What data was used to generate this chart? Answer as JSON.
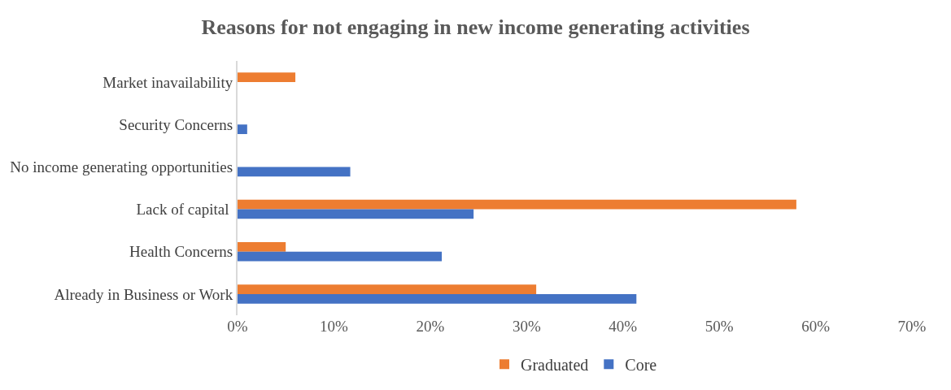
{
  "chart_data": {
    "type": "bar",
    "orientation": "horizontal",
    "title": "Reasons for not engaging in new income generating activities",
    "categories": [
      "Market inavailability",
      "Security Concerns",
      "No income generating opportunities",
      "Lack of capital ",
      "Health Concerns",
      "Already in Business or Work"
    ],
    "series": [
      {
        "name": "Graduated",
        "color": "#ed7d31",
        "values": [
          6.0,
          null,
          null,
          58.0,
          5.0,
          31.0
        ]
      },
      {
        "name": "Core",
        "color": "#4472c4",
        "values": [
          null,
          1.0,
          11.7,
          24.5,
          21.2,
          41.4
        ]
      }
    ],
    "xlim": [
      0,
      70
    ],
    "xticks": [
      {
        "value": 0,
        "label": "0%"
      },
      {
        "value": 10,
        "label": "10%"
      },
      {
        "value": 20,
        "label": "20%"
      },
      {
        "value": 30,
        "label": "30%"
      },
      {
        "value": 40,
        "label": "40%"
      },
      {
        "value": 50,
        "label": "50%"
      },
      {
        "value": 60,
        "label": "60%"
      },
      {
        "value": 70,
        "label": "70%"
      }
    ],
    "grid": false,
    "legend": "bottom"
  }
}
